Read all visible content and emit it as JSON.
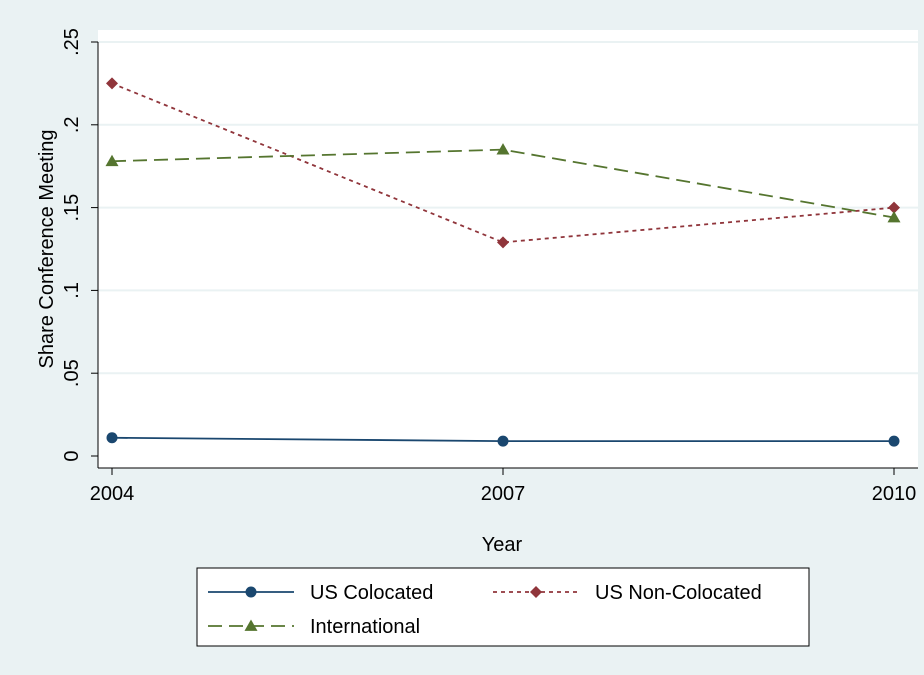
{
  "colors": {
    "outer_background": "#eaf2f3",
    "plot_background": "#ffffff",
    "grid": "#eaf2f3",
    "axis": "#000000"
  },
  "chart_data": {
    "type": "line",
    "title": "",
    "xlabel": "Year",
    "ylabel": "Share Conference Meeting",
    "x": [
      2004,
      2007,
      2010
    ],
    "xlim": [
      2004,
      2010
    ],
    "ylim": [
      0,
      0.25
    ],
    "xticks": [
      {
        "value": 2004,
        "label": "2004"
      },
      {
        "value": 2007,
        "label": "2007"
      },
      {
        "value": 2010,
        "label": "2010"
      }
    ],
    "yticks": [
      {
        "value": 0,
        "label": "0"
      },
      {
        "value": 0.05,
        "label": ".05"
      },
      {
        "value": 0.1,
        "label": ".1"
      },
      {
        "value": 0.15,
        "label": ".15"
      },
      {
        "value": 0.2,
        "label": ".2"
      },
      {
        "value": 0.25,
        "label": ".25"
      }
    ],
    "grid": true,
    "legend_position": "bottom",
    "series": [
      {
        "name": "US Colocated",
        "values": [
          0.011,
          0.009,
          0.009
        ],
        "color": "#1a476f",
        "marker": "circle",
        "dash": "solid"
      },
      {
        "name": "US Non-Colocated",
        "values": [
          0.225,
          0.129,
          0.15
        ],
        "color": "#90353b",
        "marker": "diamond",
        "dash": "dotted"
      },
      {
        "name": "International",
        "values": [
          0.178,
          0.185,
          0.144
        ],
        "color": "#55752f",
        "marker": "triangle",
        "dash": "dashed"
      }
    ]
  }
}
